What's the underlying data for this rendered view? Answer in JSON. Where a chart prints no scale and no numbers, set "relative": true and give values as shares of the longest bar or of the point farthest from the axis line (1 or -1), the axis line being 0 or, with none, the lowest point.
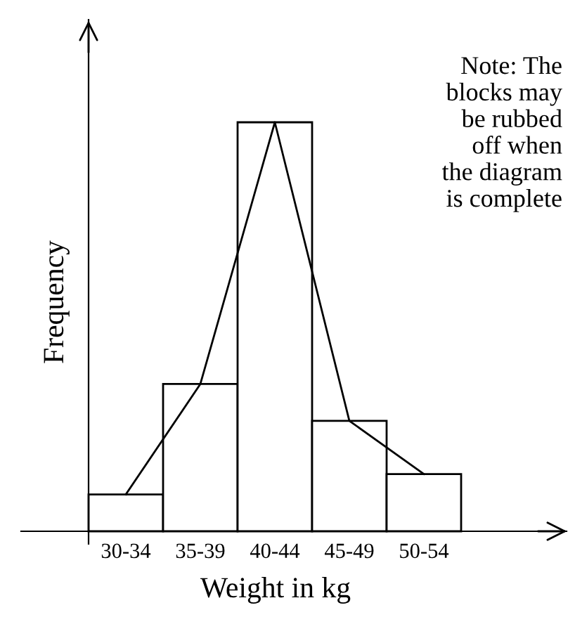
{
  "chart_data": {
    "type": "bar",
    "relative": true,
    "categories": [
      "30-34",
      "35-39",
      "40-44",
      "45-49",
      "50-54"
    ],
    "series": [
      {
        "color": "#ffffff",
        "values": [
          0.09,
          0.36,
          1,
          0.27,
          0.14
        ]
      },
      {
        "type": "line",
        "color": "#000000",
        "values": [
          0.09,
          0.36,
          1,
          0.27,
          0.14
        ]
      }
    ],
    "xlabel": "Weight in kg",
    "ylabel": "Frequency",
    "annotations": [
      "Note: The\nblocks may\nbe rubbed\noff when\nthe diagram\nis complete"
    ],
    "grid": false,
    "legend": false
  }
}
